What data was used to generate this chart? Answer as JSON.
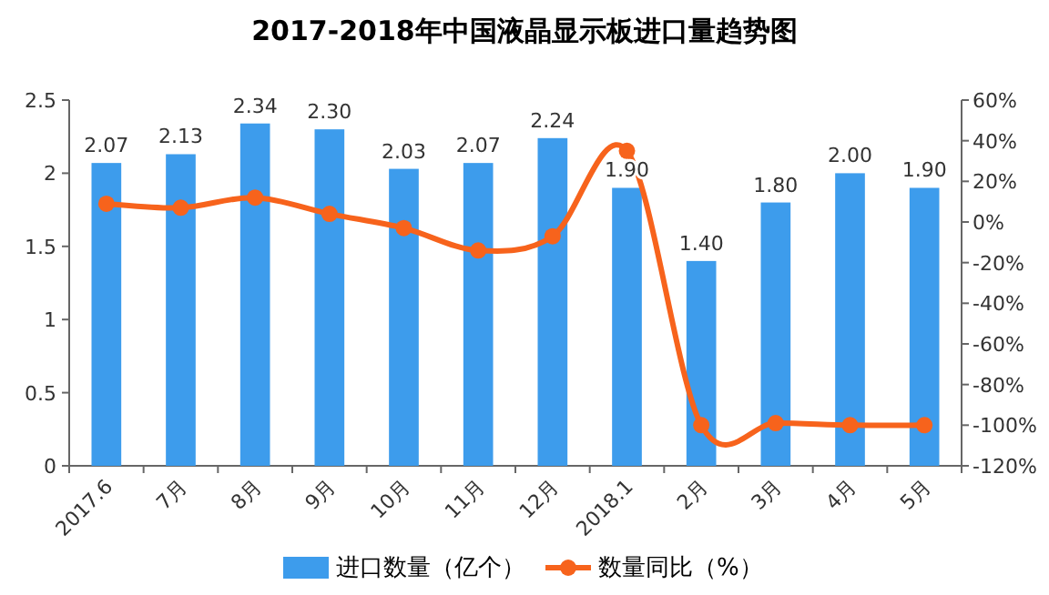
{
  "chart_data": {
    "type": "bar",
    "title": "2017-2018年中国液晶显示板进口量趋势图",
    "categories": [
      "2017.6",
      "7月",
      "8月",
      "9月",
      "10月",
      "11月",
      "12月",
      "2018.1",
      "2月",
      "3月",
      "4月",
      "5月"
    ],
    "series": [
      {
        "name": "进口数量（亿个）",
        "color": "#3d9cec",
        "values": [
          2.07,
          2.13,
          2.34,
          2.3,
          2.03,
          2.07,
          2.24,
          1.9,
          1.4,
          1.8,
          2.0,
          1.9
        ],
        "value_labels": [
          "2.07",
          "2.13",
          "2.34",
          "2.30",
          "2.03",
          "2.07",
          "2.24",
          "1.90",
          "1.40",
          "1.80",
          "2.00",
          "1.90"
        ]
      },
      {
        "name": "数量同比（%）",
        "type": "line",
        "axis": "y2",
        "color": "#f7631c",
        "marker": "circle",
        "values": [
          9,
          7,
          12,
          4,
          -3,
          -14,
          -7,
          35,
          -100,
          -99,
          -100,
          -100
        ]
      }
    ],
    "ylim": [
      0,
      2.5
    ],
    "yticks": [
      0,
      0.5,
      1,
      1.5,
      2,
      2.5
    ],
    "y2lim": [
      -120,
      60
    ],
    "y2ticks": [
      {
        "value": -120,
        "label": "-120%"
      },
      {
        "value": -100,
        "label": "-100%"
      },
      {
        "value": -80,
        "label": "-80%"
      },
      {
        "value": -60,
        "label": "-60%"
      },
      {
        "value": -40,
        "label": "-40%"
      },
      {
        "value": -20,
        "label": "-20%"
      },
      {
        "value": 0,
        "label": "0%"
      },
      {
        "value": 20,
        "label": "20%"
      },
      {
        "value": 40,
        "label": "40%"
      },
      {
        "value": 60,
        "label": "60%"
      }
    ],
    "grid": false,
    "legend": "bottom"
  }
}
